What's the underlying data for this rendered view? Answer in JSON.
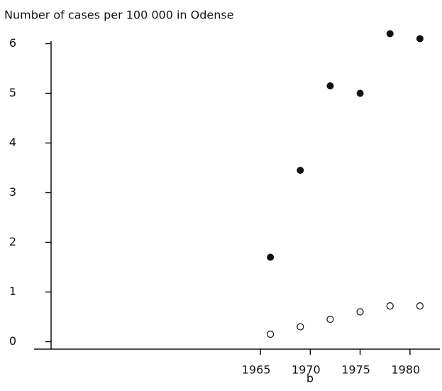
{
  "chart_data": {
    "type": "scatter",
    "title": "Number of cases per 100 000 in Odense",
    "panel_label": "b",
    "series": [
      {
        "color": "#111111",
        "marker": "filled",
        "x": [
          1966,
          1969,
          1972,
          1975,
          1978,
          1981
        ],
        "values": [
          1.7,
          3.45,
          5.15,
          5.0,
          6.2,
          6.1
        ]
      },
      {
        "color": "#111111",
        "marker": "open",
        "x": [
          1966,
          1969,
          1972,
          1975,
          1978,
          1981
        ],
        "values": [
          0.15,
          0.3,
          0.45,
          0.6,
          0.72,
          0.72
        ]
      }
    ],
    "xlim": [
      1944,
      1983
    ],
    "xticks": [
      1965,
      1970,
      1975,
      1980
    ],
    "ylim": [
      -0.15,
      6.05
    ],
    "yticks": [
      0,
      1,
      2,
      3,
      4,
      5,
      6
    ],
    "grid": false
  }
}
